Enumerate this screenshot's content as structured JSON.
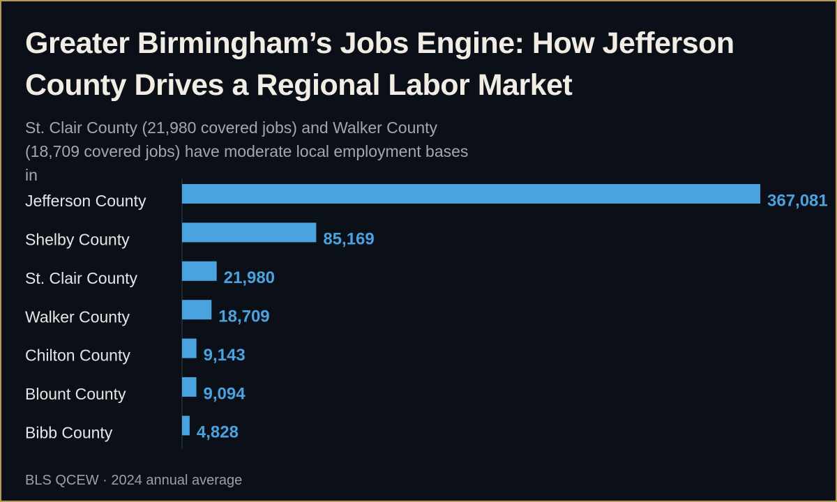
{
  "chart_data": {
    "type": "hbar",
    "title": "Greater Birmingham’s Jobs Engine: How Jefferson County Drives a Regional Labor Market",
    "subtitle": "St. Clair County (21,980 covered jobs) and Walker County (18,709 covered jobs) have moderate local employment bases in",
    "source": "BLS QCEW · 2024 annual average",
    "categories": [
      "Jefferson County",
      "Shelby County",
      "St. Clair County",
      "Walker County",
      "Chilton County",
      "Blount County",
      "Bibb County"
    ],
    "values": [
      367081,
      85169,
      21980,
      18709,
      9143,
      9094,
      4828
    ],
    "value_labels": [
      "367,081",
      "85,169",
      "21,980",
      "18,709",
      "9,143",
      "9,094",
      "4,828"
    ],
    "color": "#4aa3df"
  }
}
